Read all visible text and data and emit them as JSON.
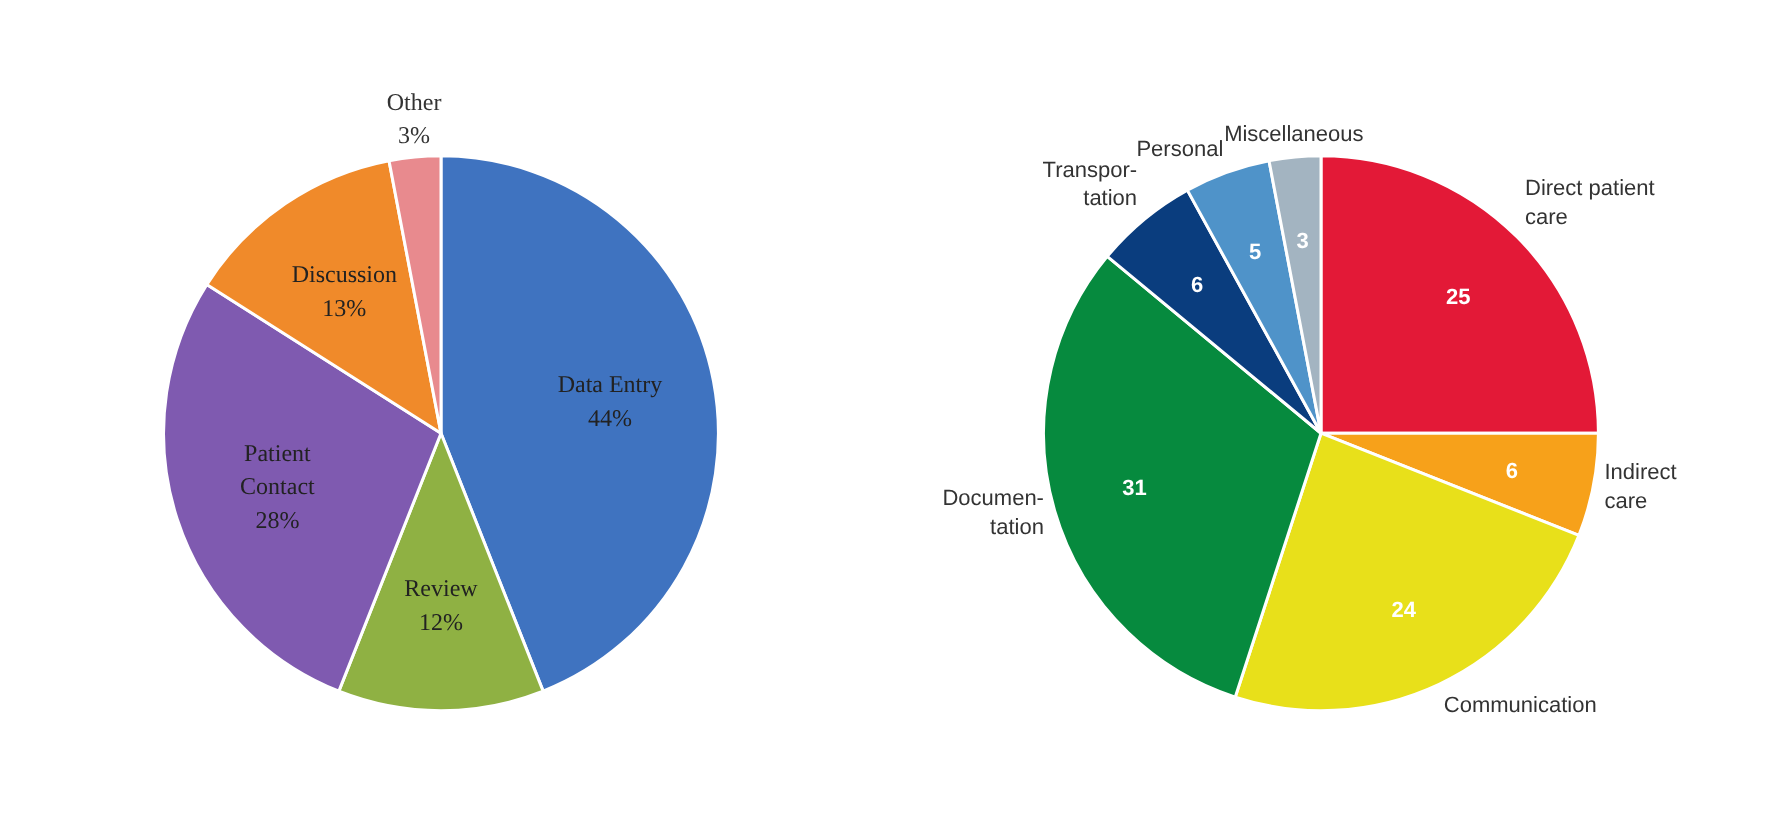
{
  "chart_data": [
    {
      "type": "pie",
      "categories": [
        "Data Entry",
        "Review",
        "Patient\nContact",
        "Discussion",
        "Other"
      ],
      "values": [
        44,
        12,
        28,
        13,
        3
      ],
      "value_labels": [
        "44%",
        "12%",
        "28%",
        "13%",
        "3%"
      ],
      "colors": [
        "#3f73c0",
        "#8fb143",
        "#7f5ab0",
        "#f08a2a",
        "#e88a8e"
      ]
    },
    {
      "type": "pie",
      "categories": [
        "Direct patient\ncare",
        "Indirect\ncare",
        "Communication",
        "Documen-\ntation",
        "Transpor-\ntation",
        "Personal",
        "Miscellaneous"
      ],
      "values": [
        25,
        6,
        24,
        31,
        6,
        5,
        3
      ],
      "data_labels": true,
      "colors": [
        "#e31937",
        "#f7a11a",
        "#e8e01a",
        "#068a3e",
        "#0a3d7e",
        "#4f93c9",
        "#a3b4c1"
      ]
    }
  ]
}
